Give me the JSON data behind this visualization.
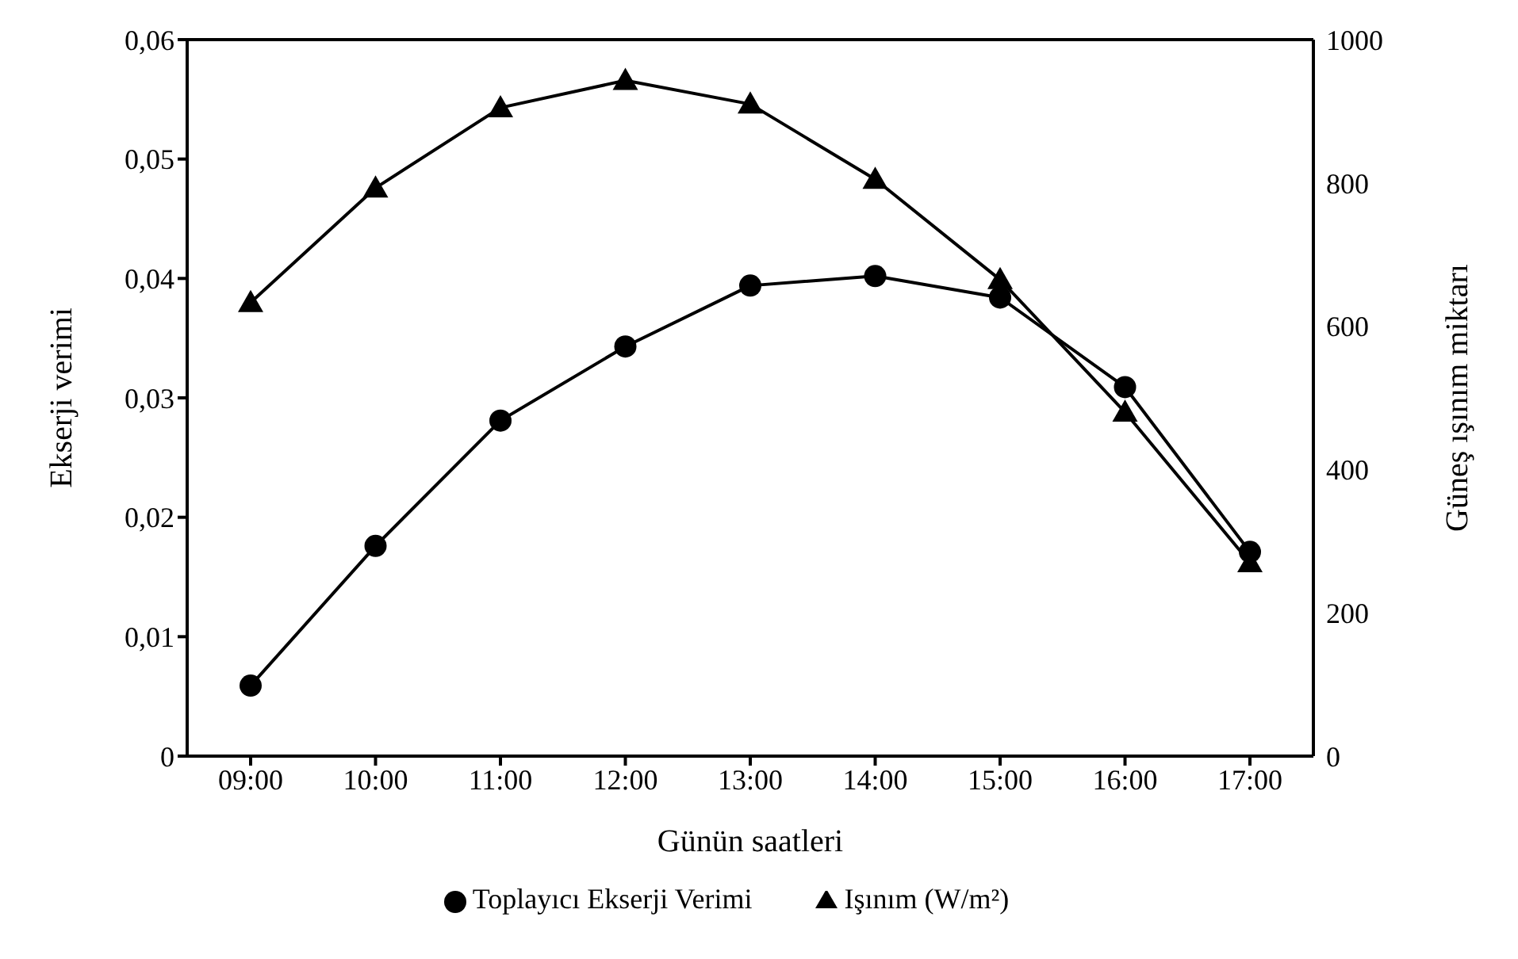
{
  "chart_data": {
    "type": "line",
    "xlabel": "Günün saatleri",
    "ylabel": "Ekserji verimi",
    "y2label": "Güneş ışınım miktarı",
    "categories": [
      "09:00",
      "10:00",
      "11:00",
      "12:00",
      "13:00",
      "14:00",
      "15:00",
      "16:00",
      "17:00"
    ],
    "series": [
      {
        "name": "Toplayıcı Ekserji Verimi",
        "color": "#000000",
        "marker": "circle",
        "values": [
          0.0059,
          0.0176,
          0.0281,
          0.0343,
          0.0394,
          0.0402,
          0.0384,
          0.0309,
          0.0171
        ]
      },
      {
        "name": "Işınım (W/m²)",
        "color": "#000000",
        "marker": "triangle",
        "axis": "y2",
        "values": [
          633,
          793,
          905,
          943,
          910,
          805,
          665,
          480,
          270
        ]
      }
    ],
    "ylim": [
      0,
      0.06
    ],
    "yticks": [
      {
        "value": 0,
        "label": "0"
      },
      {
        "value": 0.01,
        "label": "0,01"
      },
      {
        "value": 0.02,
        "label": "0,02"
      },
      {
        "value": 0.03,
        "label": "0,03"
      },
      {
        "value": 0.04,
        "label": "0,04"
      },
      {
        "value": 0.05,
        "label": "0,05"
      },
      {
        "value": 0.06,
        "label": "0,06"
      }
    ],
    "y2lim": [
      0,
      1000
    ],
    "y2ticks": [
      0,
      200,
      400,
      600,
      800,
      1000
    ],
    "grid": false,
    "legend": "bottom",
    "line_style": "solid"
  }
}
